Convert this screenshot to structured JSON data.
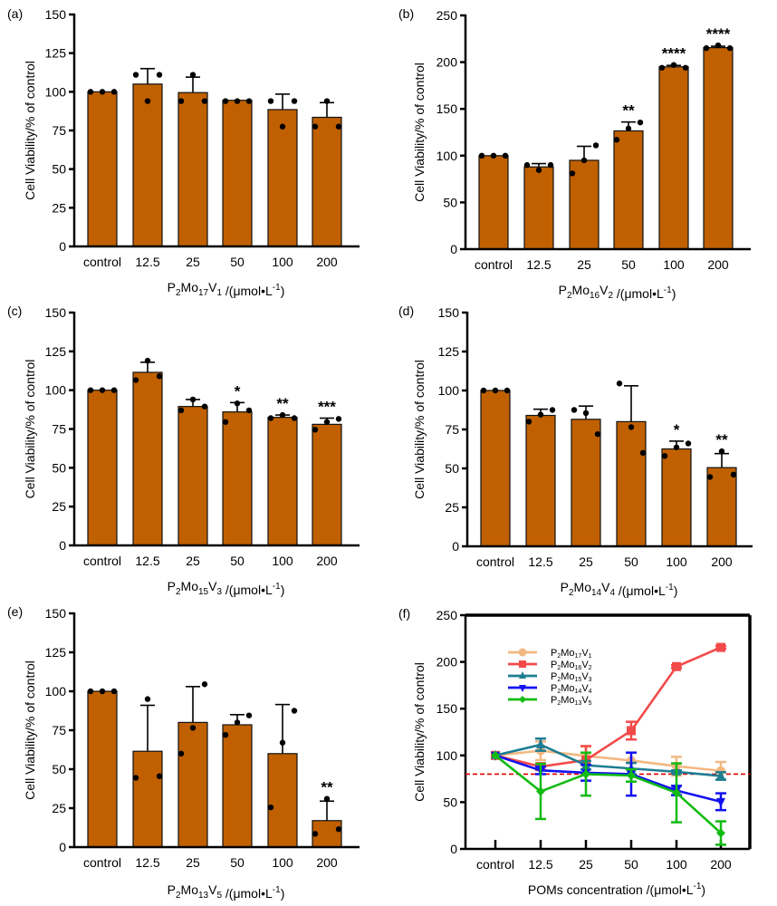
{
  "figure": {
    "panel_labels": [
      "(a)",
      "(b)",
      "(c)",
      "(d)",
      "(e)",
      "(f)"
    ],
    "bar_color": "#c06000",
    "x_unit": "/(μmol•L⁻¹)"
  },
  "chart_data": [
    {
      "panel": "(a)",
      "type": "bar",
      "ylabel": "Cell Viability/% of control",
      "xlabel": {
        "prefix": "P",
        "s1": "2",
        "mid": "Mo",
        "s2": "17",
        "v": "V",
        "s3": "1",
        "suffix": " /(μmol•L",
        "sup": "-1",
        "end": ")"
      },
      "categories": [
        "control",
        "12.5",
        "25",
        "50",
        "100",
        "200"
      ],
      "values": [
        100,
        105,
        99.5,
        94.5,
        88.5,
        83.5
      ],
      "errors": [
        0,
        10,
        10,
        0,
        10,
        9.5
      ],
      "points": [
        [
          100,
          100,
          100
        ],
        [
          111,
          94,
          111
        ],
        [
          94,
          111,
          94
        ],
        [
          94,
          94,
          94
        ],
        [
          94,
          77.5,
          94
        ],
        [
          77.5,
          94,
          77.5
        ]
      ],
      "significance": [
        "",
        "",
        "",
        "",
        "",
        ""
      ],
      "ylim": [
        0,
        150
      ],
      "yticks": [
        0,
        25,
        50,
        75,
        100,
        125,
        150
      ]
    },
    {
      "panel": "(b)",
      "type": "bar",
      "ylabel": "Cell Viability/% of control",
      "xlabel": {
        "prefix": "P",
        "s1": "2",
        "mid": "Mo",
        "s2": "16",
        "v": "V",
        "s3": "2",
        "suffix": " /(μmol•L",
        "sup": "-1",
        "end": ")"
      },
      "categories": [
        "control",
        "12.5",
        "25",
        "50",
        "100",
        "200"
      ],
      "values": [
        100,
        88,
        95,
        126.5,
        195,
        215.5
      ],
      "errors": [
        0,
        3.5,
        15,
        9.5,
        1.5,
        1.5
      ],
      "points": [
        [
          100,
          100,
          100
        ],
        [
          90,
          84.5,
          90
        ],
        [
          81,
          95,
          111
        ],
        [
          117,
          129,
          135.5
        ],
        [
          194,
          197,
          194
        ],
        [
          215,
          218,
          215
        ]
      ],
      "significance": [
        "",
        "",
        "",
        "**",
        "****",
        "****"
      ],
      "ylim": [
        0,
        250
      ],
      "yticks": [
        0,
        50,
        100,
        150,
        200,
        250
      ]
    },
    {
      "panel": "(c)",
      "type": "bar",
      "ylabel": "Cell Viability/% of control",
      "xlabel": {
        "prefix": "P",
        "s1": "2",
        "mid": "Mo",
        "s2": "15",
        "v": "V",
        "s3": "3",
        "suffix": " /(μmol•L",
        "sup": "-1",
        "end": ")"
      },
      "categories": [
        "control",
        "12.5",
        "25",
        "50",
        "100",
        "200"
      ],
      "values": [
        100,
        111.5,
        89.5,
        86,
        82.5,
        78
      ],
      "errors": [
        0,
        6.5,
        4.5,
        6,
        1.5,
        4
      ],
      "points": [
        [
          100,
          100,
          100
        ],
        [
          106.5,
          119,
          109
        ],
        [
          87,
          94,
          89.5
        ],
        [
          79.5,
          91.5,
          87
        ],
        [
          82,
          84,
          82
        ],
        [
          74.5,
          79.5,
          81.5
        ]
      ],
      "significance": [
        "",
        "",
        "",
        "*",
        "**",
        "***"
      ],
      "ylim": [
        0,
        150
      ],
      "yticks": [
        0,
        25,
        50,
        75,
        100,
        125,
        150
      ]
    },
    {
      "panel": "(d)",
      "type": "bar",
      "ylabel": "Cell Viability/% of control",
      "xlabel": {
        "prefix": "P",
        "s1": "2",
        "mid": "Mo",
        "s2": "14",
        "v": "V",
        "s3": "4",
        "suffix": " /(μmol•L",
        "sup": "-1",
        "end": ")"
      },
      "categories": [
        "control",
        "12.5",
        "25",
        "50",
        "100",
        "200"
      ],
      "values": [
        100,
        84,
        81.5,
        80,
        62.5,
        50.5
      ],
      "errors": [
        0,
        4,
        8.5,
        23,
        5,
        9
      ],
      "points": [
        [
          100,
          100,
          100
        ],
        [
          80,
          84.5,
          87.5
        ],
        [
          87.5,
          85.5,
          72
        ],
        [
          104.5,
          76.5,
          60
        ],
        [
          58,
          63.5,
          66
        ],
        [
          44.5,
          61,
          46
        ]
      ],
      "significance": [
        "",
        "",
        "",
        "",
        "*",
        "**"
      ],
      "ylim": [
        0,
        150
      ],
      "yticks": [
        0,
        25,
        50,
        75,
        100,
        125,
        150
      ]
    },
    {
      "panel": "(e)",
      "type": "bar",
      "ylabel": "Cell Viability/% of control",
      "xlabel": {
        "prefix": "P",
        "s1": "2",
        "mid": "Mo",
        "s2": "13",
        "v": "V",
        "s3": "5",
        "suffix": " /(μmol•L",
        "sup": "-1",
        "end": ")"
      },
      "categories": [
        "control",
        "12.5",
        "25",
        "50",
        "100",
        "200"
      ],
      "values": [
        100,
        61.5,
        80,
        78.5,
        60,
        17
      ],
      "errors": [
        0,
        29.5,
        23,
        6.5,
        31.5,
        12.5
      ],
      "points": [
        [
          100,
          100,
          100
        ],
        [
          44.5,
          95,
          45.5
        ],
        [
          60,
          76.5,
          104.5
        ],
        [
          72,
          80,
          84.5
        ],
        [
          25.5,
          67,
          87.5
        ],
        [
          8.5,
          31,
          11.5
        ]
      ],
      "significance": [
        "",
        "",
        "",
        "",
        "",
        "**"
      ],
      "ylim": [
        0,
        150
      ],
      "yticks": [
        0,
        25,
        50,
        75,
        100,
        125,
        150
      ]
    },
    {
      "panel": "(f)",
      "type": "line",
      "ylabel": "Cell Viability/% of control",
      "xlabel": {
        "text": "POMs concentration",
        "suffix": " /(μmol•L",
        "sup": "-1",
        "end": ")"
      },
      "categories": [
        "control",
        "12.5",
        "25",
        "50",
        "100",
        "200"
      ],
      "ylim": [
        0,
        250
      ],
      "yticks": [
        0,
        50,
        100,
        150,
        200,
        250
      ],
      "reference_line": {
        "value": 80,
        "color": "#e00000",
        "style": "dashed"
      },
      "legend_position": "top-left",
      "series": [
        {
          "name": "P2Mo17V1",
          "label": {
            "p": "P",
            "s1": "2",
            "mo": "Mo",
            "s2": "17",
            "v": "V",
            "s3": "1"
          },
          "color": "#f2b882",
          "marker": "circle",
          "values": [
            100,
            105,
            99.5,
            94.5,
            88.5,
            83.5
          ],
          "errors": [
            0,
            10,
            10,
            0,
            10,
            9.5
          ]
        },
        {
          "name": "P2Mo16V2",
          "label": {
            "p": "P",
            "s1": "2",
            "mo": "Mo",
            "s2": "16",
            "v": "V",
            "s3": "2"
          },
          "color": "#f24a4a",
          "marker": "square",
          "values": [
            100,
            88,
            95,
            126.5,
            195,
            215.5
          ],
          "errors": [
            0,
            3.5,
            15,
            9.5,
            1.5,
            1.5
          ]
        },
        {
          "name": "P2Mo15V3",
          "label": {
            "p": "P",
            "s1": "2",
            "mo": "Mo",
            "s2": "15",
            "v": "V",
            "s3": "3"
          },
          "color": "#1e7d92",
          "marker": "triangle-up",
          "values": [
            100,
            111.5,
            89.5,
            86,
            82.5,
            78
          ],
          "errors": [
            0,
            6.5,
            4.5,
            6,
            1.5,
            4
          ]
        },
        {
          "name": "P2Mo14V4",
          "label": {
            "p": "P",
            "s1": "2",
            "mo": "Mo",
            "s2": "14",
            "v": "V",
            "s3": "4"
          },
          "color": "#1212f0",
          "marker": "triangle-down",
          "values": [
            100,
            84,
            81.5,
            80,
            62.5,
            50.5
          ],
          "errors": [
            0,
            4,
            8.5,
            23,
            5,
            9
          ]
        },
        {
          "name": "P2Mo13V5",
          "label": {
            "p": "P",
            "s1": "2",
            "mo": "Mo",
            "s2": "13",
            "v": "V",
            "s3": "5"
          },
          "color": "#12bb12",
          "marker": "diamond",
          "values": [
            100,
            61.5,
            80,
            78.5,
            60,
            17
          ],
          "errors": [
            0,
            29.5,
            23,
            6.5,
            31.5,
            12.5
          ]
        }
      ]
    }
  ]
}
